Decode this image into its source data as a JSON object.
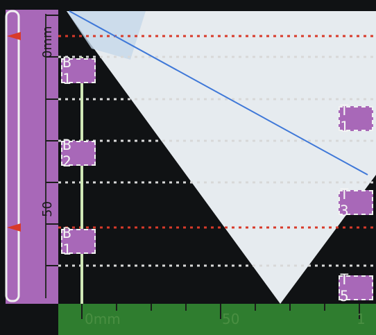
{
  "colors": {
    "background": "#101214",
    "panel": "#a868b8",
    "ruler_green": "#2f7d2f",
    "scan_fill": "#e6ebef",
    "red_marker": "#d83a2a",
    "dotted": "#d8d8d8",
    "cursor_green": "#cfe7b6",
    "blue_line": "#3f78d8"
  },
  "left_ruler": {
    "top_label": "0mm",
    "mid_label": "50"
  },
  "bottom_ruler": {
    "left_label": "0mm",
    "mid_label": "50",
    "right_label": "1"
  },
  "markers_left": [
    "B 1",
    "B 2",
    "B 1"
  ],
  "markers_right": [
    "T 1",
    "T 3",
    "T 5"
  ]
}
